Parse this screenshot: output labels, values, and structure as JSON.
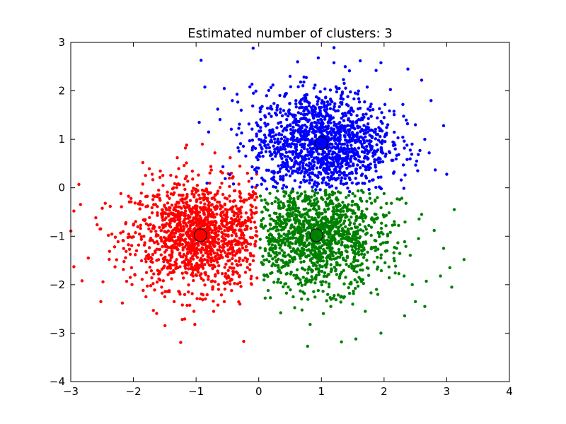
{
  "chart_data": {
    "type": "scatter",
    "title": "Estimated number of clusters: 3",
    "xlabel": "",
    "ylabel": "",
    "xlim": [
      -3,
      4
    ],
    "ylim": [
      -4,
      3
    ],
    "x_ticks": [
      -3,
      -2,
      -1,
      0,
      1,
      2,
      3,
      4
    ],
    "y_ticks": [
      -4,
      -3,
      -2,
      -1,
      0,
      1,
      2,
      3
    ],
    "grid": false,
    "series": [
      {
        "color": "#ff0000",
        "cluster_center": [
          -0.93,
          -0.98
        ],
        "points": [
          [
            -2.87,
            0.07
          ],
          [
            -2.95,
            -0.48
          ],
          [
            -2.82,
            -1.92
          ],
          [
            -2.95,
            -1.63
          ],
          [
            -2.52,
            -2.35
          ],
          [
            -2.72,
            -1.45
          ],
          [
            -2.6,
            -0.62
          ],
          [
            -2.4,
            -0.98
          ],
          [
            -2.3,
            -1.22
          ],
          [
            -2.2,
            -0.12
          ],
          [
            -2.12,
            -0.72
          ],
          [
            -1.85,
            0.52
          ],
          [
            -1.62,
            -0.18
          ],
          [
            -1.72,
            -1.52
          ],
          [
            -1.55,
            -2.05
          ],
          [
            -1.8,
            -2.25
          ],
          [
            -1.3,
            0.62
          ],
          [
            -1.15,
            0.88
          ],
          [
            -0.9,
            0.9
          ],
          [
            -0.7,
            0.72
          ],
          [
            -1.22,
            -2.72
          ],
          [
            -1.02,
            -2.82
          ],
          [
            -0.72,
            -2.55
          ],
          [
            -0.55,
            -2.35
          ],
          [
            -0.24,
            -3.17
          ],
          [
            -0.3,
            -2.4
          ],
          [
            -0.12,
            -1.98
          ],
          [
            -0.18,
            0.3
          ],
          [
            -0.42,
            0.2
          ],
          [
            -1.4,
            -0.52
          ],
          [
            -1.1,
            -1.32
          ],
          [
            -0.8,
            -0.72
          ],
          [
            -0.6,
            -1.32
          ],
          [
            -0.35,
            -0.78
          ],
          [
            -0.25,
            -1.5
          ],
          [
            -0.9,
            -0.05
          ],
          [
            -1.55,
            -1.1
          ],
          [
            -1.95,
            -1.3
          ],
          [
            -2.05,
            -1.85
          ],
          [
            -0.5,
            -1.95
          ],
          [
            -1.7,
            0.28
          ],
          [
            -2.45,
            -0.32
          ],
          [
            -0.15,
            -0.65
          ],
          [
            -1.35,
            -2.35
          ],
          [
            -0.85,
            -1.75
          ]
        ]
      },
      {
        "color": "#0000ff",
        "cluster_center": [
          1.0,
          0.92
        ],
        "points": [
          [
            -0.92,
            2.63
          ],
          [
            -0.55,
            2.05
          ],
          [
            -0.95,
            1.35
          ],
          [
            -0.28,
            1.6
          ],
          [
            0.05,
            0.95
          ],
          [
            0.25,
            0.32
          ],
          [
            0.5,
            2.3
          ],
          [
            0.62,
            2.6
          ],
          [
            0.72,
            2.18
          ],
          [
            0.95,
            2.68
          ],
          [
            1.2,
            2.58
          ],
          [
            1.38,
            2.5
          ],
          [
            1.62,
            2.62
          ],
          [
            1.95,
            2.58
          ],
          [
            2.38,
            2.45
          ],
          [
            2.6,
            2.22
          ],
          [
            2.75,
            1.8
          ],
          [
            2.95,
            1.28
          ],
          [
            2.65,
            1.0
          ],
          [
            2.72,
            0.72
          ],
          [
            2.52,
            0.55
          ],
          [
            2.15,
            0.3
          ],
          [
            2.3,
            1.72
          ],
          [
            1.95,
            0.22
          ],
          [
            1.45,
            -0.08
          ],
          [
            0.4,
            0.05
          ],
          [
            0.05,
            0.2
          ],
          [
            -0.8,
            1.15
          ],
          [
            0.3,
            1.7
          ],
          [
            0.55,
            1.25
          ],
          [
            1.1,
            0.68
          ],
          [
            1.45,
            1.55
          ],
          [
            0.8,
            0.45
          ],
          [
            1.7,
            1.05
          ],
          [
            0.2,
            1.05
          ],
          [
            2.0,
            1.45
          ],
          [
            1.25,
            2.05
          ],
          [
            0.65,
            1.65
          ],
          [
            1.85,
            0.58
          ],
          [
            0.95,
            1.85
          ],
          [
            3.0,
            0.28
          ],
          [
            2.5,
            1.3
          ],
          [
            1.55,
            0.35
          ],
          [
            0.35,
            1.35
          ]
        ]
      },
      {
        "color": "#008000",
        "cluster_center": [
          0.92,
          -0.98
        ],
        "points": [
          [
            3.12,
            -0.45
          ],
          [
            3.05,
            -1.65
          ],
          [
            3.08,
            -2.05
          ],
          [
            2.9,
            -1.82
          ],
          [
            2.65,
            -2.45
          ],
          [
            2.5,
            -2.35
          ],
          [
            2.32,
            -1.82
          ],
          [
            1.95,
            -3.0
          ],
          [
            1.55,
            -3.12
          ],
          [
            1.32,
            -3.18
          ],
          [
            0.78,
            -3.27
          ],
          [
            0.82,
            -2.82
          ],
          [
            0.35,
            -2.58
          ],
          [
            0.15,
            -2.12
          ],
          [
            0.05,
            -1.55
          ],
          [
            0.1,
            -0.25
          ],
          [
            0.4,
            -0.08
          ],
          [
            0.9,
            -0.1
          ],
          [
            1.5,
            -0.12
          ],
          [
            2.0,
            -0.12
          ],
          [
            2.35,
            -0.32
          ],
          [
            2.6,
            -0.55
          ],
          [
            2.8,
            -0.88
          ],
          [
            2.95,
            -1.25
          ],
          [
            2.2,
            -1.25
          ],
          [
            1.8,
            -0.65
          ],
          [
            1.25,
            -1.55
          ],
          [
            0.6,
            -1.3
          ],
          [
            0.45,
            -0.55
          ],
          [
            1.05,
            -0.45
          ],
          [
            1.6,
            -1.85
          ],
          [
            0.95,
            -2.12
          ],
          [
            0.3,
            -1.95
          ],
          [
            1.95,
            -1.45
          ],
          [
            0.7,
            -0.78
          ],
          [
            1.35,
            -0.95
          ],
          [
            2.1,
            -0.92
          ],
          [
            1.15,
            -2.45
          ],
          [
            0.55,
            -2.25
          ],
          [
            2.45,
            -2.0
          ],
          [
            1.7,
            -2.55
          ],
          [
            0.25,
            -1.05
          ],
          [
            1.9,
            -2.2
          ],
          [
            2.55,
            -1.05
          ]
        ]
      }
    ]
  }
}
